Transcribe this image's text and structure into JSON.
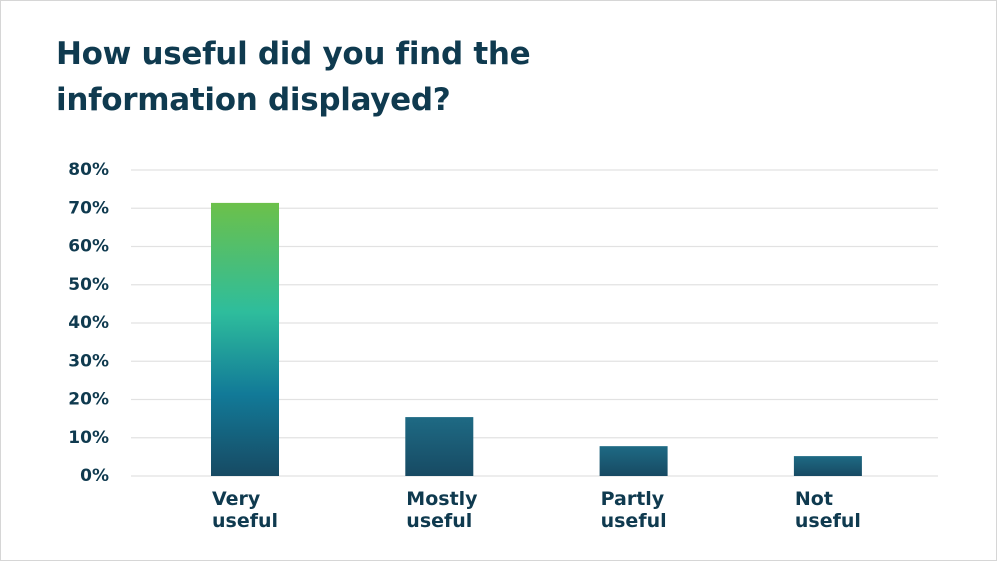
{
  "chart_data": {
    "type": "bar",
    "title": "How useful did you find the information displayed?",
    "categories": [
      "Very useful",
      "Mostly useful",
      "Partly useful",
      "Not useful"
    ],
    "values": [
      71.4,
      15.4,
      7.8,
      5.2
    ],
    "colors": [
      "#6cc04a",
      "#1e6a84",
      "#1e6a84",
      "#1e6a84"
    ],
    "ylim": [
      0,
      80
    ],
    "yticks": [
      {
        "value": 0,
        "label": "0%"
      },
      {
        "value": 10,
        "label": "10%"
      },
      {
        "value": 20,
        "label": "20%"
      },
      {
        "value": 30,
        "label": "30%"
      },
      {
        "value": 40,
        "label": "40%"
      },
      {
        "value": 50,
        "label": "50%"
      },
      {
        "value": 60,
        "label": "60%"
      },
      {
        "value": 70,
        "label": "70%"
      },
      {
        "value": 80,
        "label": "80%"
      }
    ],
    "grid": true
  }
}
